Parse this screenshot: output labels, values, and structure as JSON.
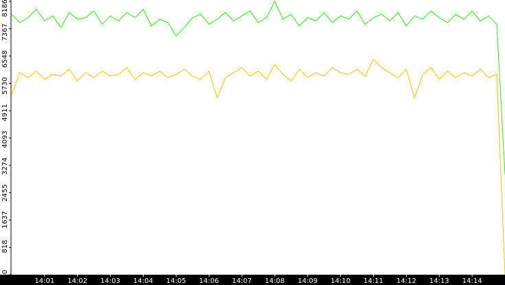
{
  "chart_data": {
    "type": "line",
    "x": [
      840,
      840.25,
      840.5,
      840.75,
      841,
      841.25,
      841.5,
      841.75,
      842,
      842.25,
      842.5,
      842.75,
      843,
      843.25,
      843.5,
      843.75,
      844,
      844.25,
      844.5,
      844.75,
      845,
      845.25,
      845.5,
      845.75,
      846,
      846.25,
      846.5,
      846.75,
      847,
      847.25,
      847.5,
      847.75,
      848,
      848.25,
      848.5,
      848.75,
      849,
      849.25,
      849.5,
      849.75,
      850,
      850.25,
      850.5,
      850.75,
      851,
      851.25,
      851.5,
      851.75,
      852,
      852.25,
      852.5,
      852.75,
      853,
      853.25,
      853.5,
      853.75,
      854,
      854.25,
      854.5,
      854.75,
      855
    ],
    "series": [
      {
        "color": "#2fe01c",
        "values": [
          7800,
          7550,
          7700,
          7950,
          7600,
          7750,
          7400,
          7850,
          7650,
          7700,
          7900,
          7500,
          7750,
          7600,
          7850,
          7700,
          7950,
          7450,
          7650,
          7550,
          7150,
          7400,
          7700,
          7800,
          7500,
          7650,
          7850,
          7600,
          7750,
          7900,
          7550,
          7700,
          8186,
          7650,
          7800,
          7450,
          7700,
          7600,
          7850,
          7550,
          7750,
          7650,
          7900,
          7500,
          7700,
          7800,
          7600,
          7850,
          7450,
          7750,
          7650,
          7900,
          7700,
          7550,
          7800,
          7650,
          7900,
          7600,
          7750,
          7500,
          3000
        ]
      },
      {
        "color": "#f2c200",
        "values": [
          5400,
          6050,
          5900,
          6100,
          5850,
          6000,
          5950,
          6150,
          5800,
          6050,
          5900,
          6100,
          5950,
          6000,
          6200,
          5850,
          6050,
          5950,
          6100,
          5900,
          6000,
          6150,
          5950,
          5850,
          6100,
          5300,
          5900,
          6050,
          6200,
          5950,
          6100,
          5850,
          6300,
          6000,
          5800,
          6150,
          5900,
          6050,
          5950,
          6200,
          6050,
          6000,
          6150,
          5950,
          6450,
          6200,
          6050,
          5900,
          6150,
          5300,
          6000,
          6200,
          5850,
          6100,
          5900,
          6050,
          5950,
          6150,
          5900,
          6000,
          0
        ]
      }
    ],
    "xlim": [
      840,
      855
    ],
    "xticks": [
      {
        "value": 841,
        "label": "14:01"
      },
      {
        "value": 842,
        "label": "14:02"
      },
      {
        "value": 843,
        "label": "14:03"
      },
      {
        "value": 844,
        "label": "14:04"
      },
      {
        "value": 845,
        "label": "14:05"
      },
      {
        "value": 846,
        "label": "14:06"
      },
      {
        "value": 847,
        "label": "14:07"
      },
      {
        "value": 848,
        "label": "14:08"
      },
      {
        "value": 849,
        "label": "14:09"
      },
      {
        "value": 850,
        "label": "14:10"
      },
      {
        "value": 851,
        "label": "14:11"
      },
      {
        "value": 852,
        "label": "14:12"
      },
      {
        "value": 853,
        "label": "14:13"
      },
      {
        "value": 854,
        "label": "14:14"
      }
    ],
    "ylim": [
      0,
      8186
    ],
    "yticks": [
      0,
      818,
      1637,
      2455,
      3274,
      4093,
      4911,
      5730,
      6548,
      7367,
      8186
    ]
  }
}
